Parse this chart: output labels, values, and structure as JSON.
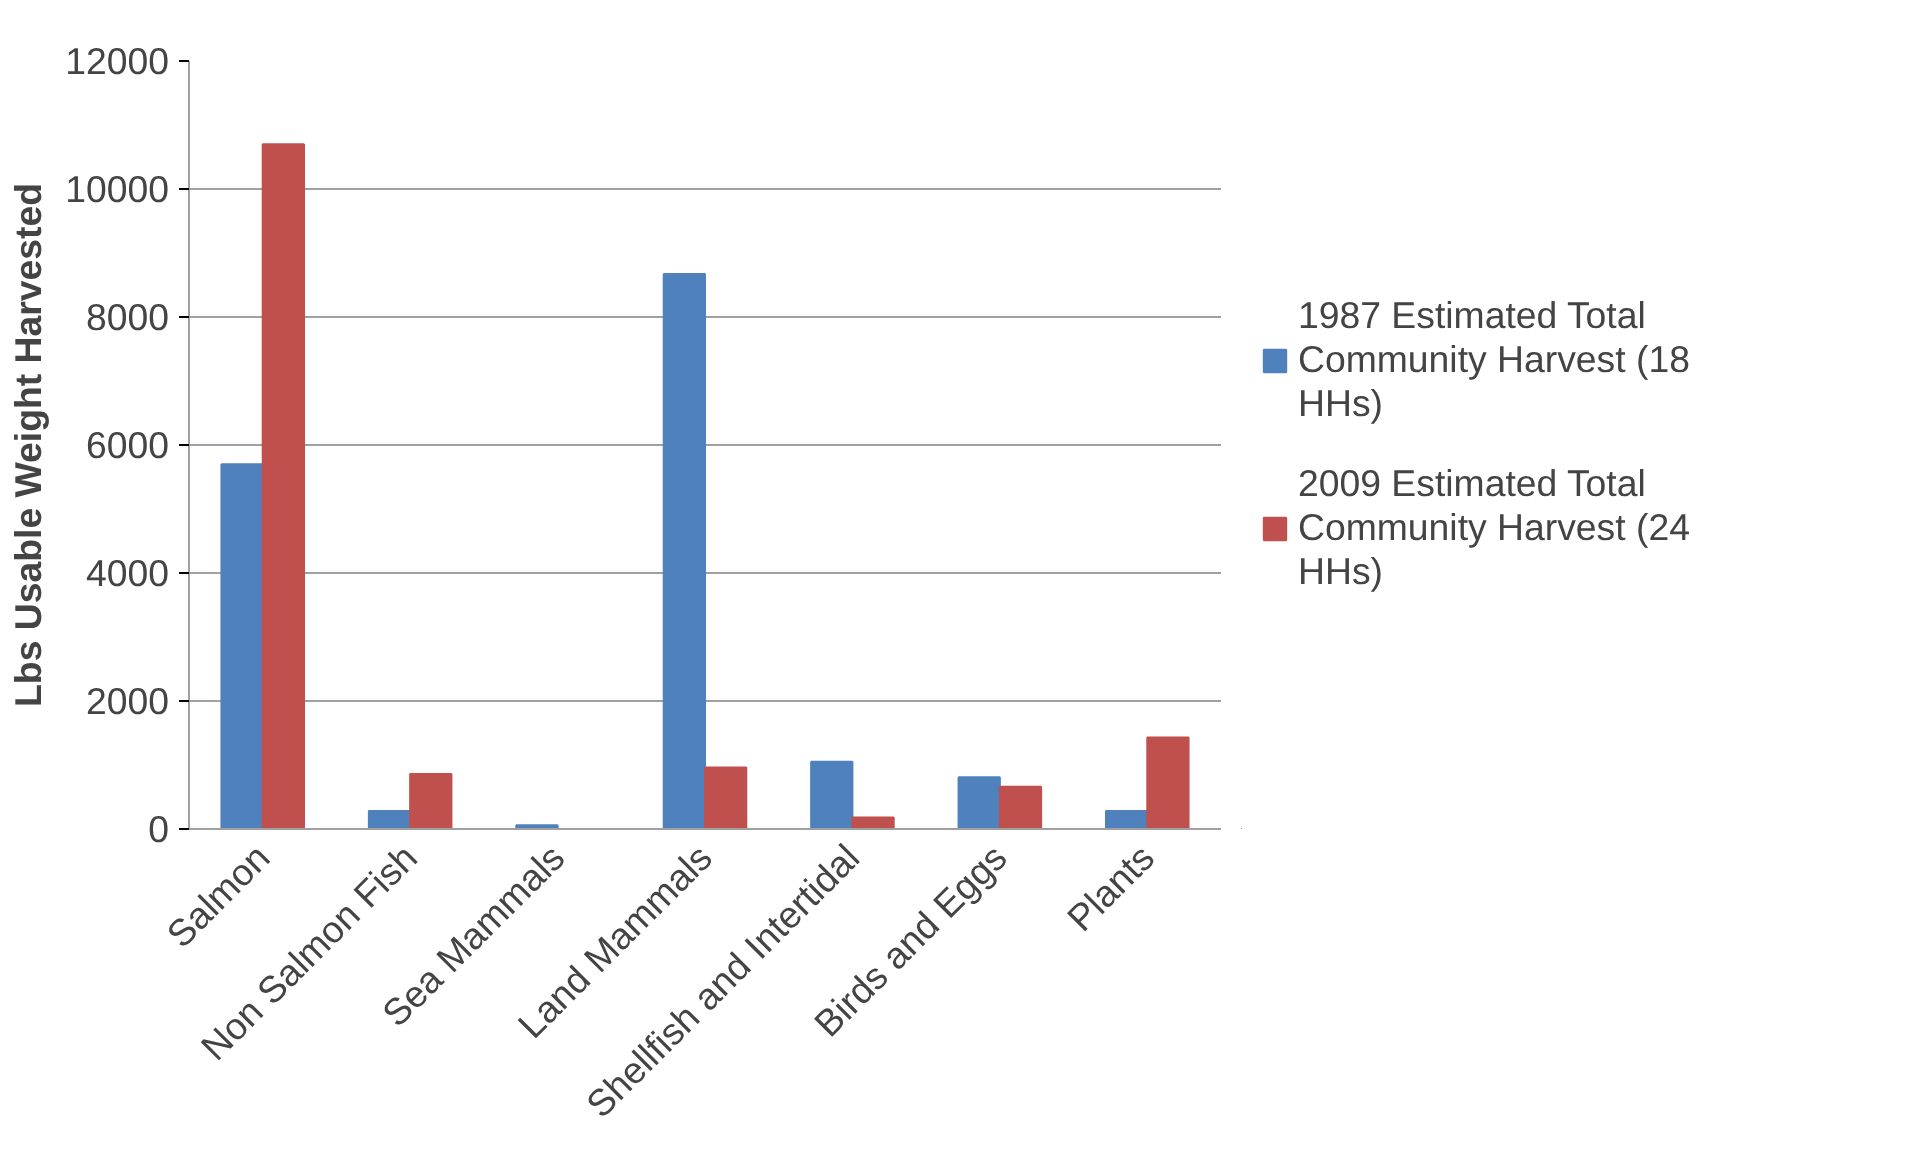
{
  "chart_data": {
    "type": "bar",
    "ylabel": "Lbs Usable Weight Harvested",
    "categories": [
      "Salmon",
      "Non Salmon Fish",
      "Sea Mammals",
      "Land Mammals",
      "Shellfish and Intertidal",
      "Birds and Eggs",
      "Plants"
    ],
    "series": [
      {
        "name": "1987 Estimated Total Community Harvest (18 HHs)",
        "color": "#4f81bd",
        "values": [
          5700,
          280,
          60,
          8670,
          1050,
          810,
          280
        ]
      },
      {
        "name": "2009 Estimated Total Community Harvest (24 HHs)",
        "color": "#c0504d",
        "values": [
          10700,
          860,
          0,
          960,
          180,
          660,
          1430
        ]
      }
    ],
    "ylim": [
      0,
      12000
    ],
    "yticks": [
      0,
      2000,
      4000,
      6000,
      8000,
      10000,
      12000
    ],
    "grid": "y",
    "legend": "right"
  }
}
